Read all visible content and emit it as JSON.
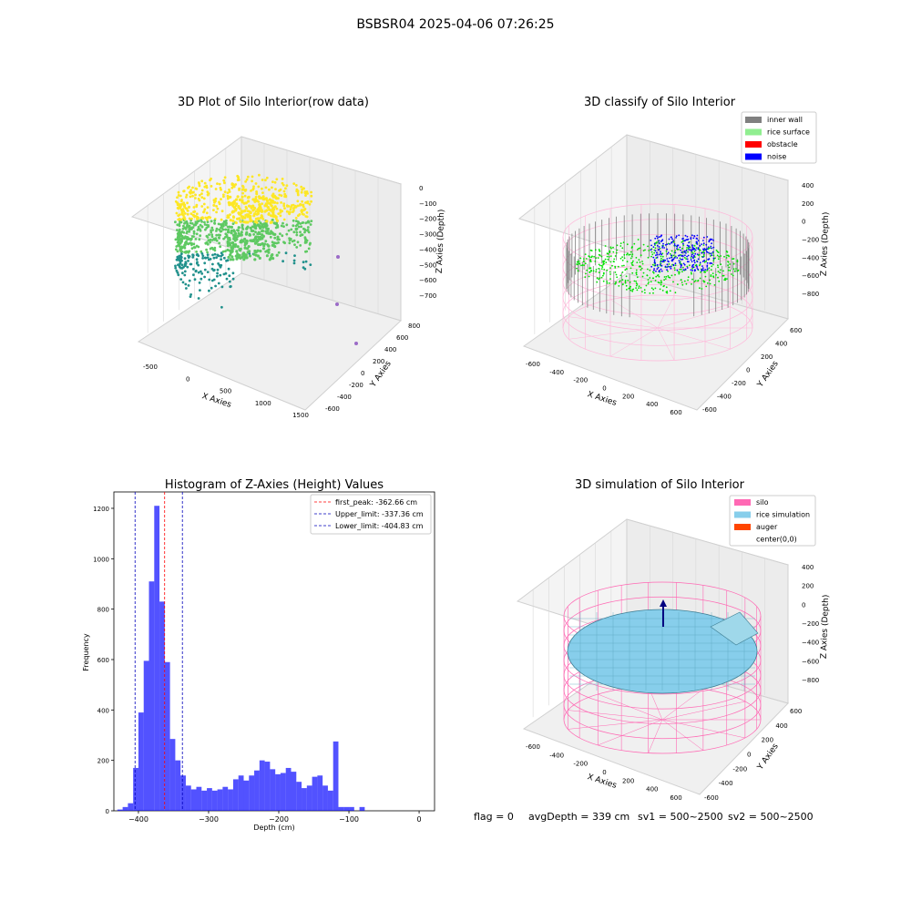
{
  "figure": {
    "suptitle": "BSBSR04 2025-04-06 07:26:25",
    "footer": {
      "flag": "flag = 0",
      "avg_depth": "avgDepth = 339 cm",
      "sv1": "sv1 = 500~2500",
      "sv2": "sv2 = 500~2500"
    }
  },
  "chart_data": [
    {
      "id": "raw",
      "type": "scatter",
      "title": "3D Plot of Silo Interior(row data)",
      "xlabel": "X Axies",
      "ylabel": "Y Axies",
      "zlabel": "Z Axies (Depth)",
      "x_ticks": [
        "-500",
        "0",
        "500",
        "1000",
        "1500"
      ],
      "y_ticks": [
        "-600",
        "-400",
        "-200",
        "0",
        "200",
        "400",
        "600",
        "800"
      ],
      "z_ticks": [
        "0",
        "−100",
        "−200",
        "−300",
        "−400",
        "−500",
        "−600",
        "−700"
      ],
      "colormap": [
        "#440154",
        "#21918c",
        "#5ec962",
        "#fde725"
      ],
      "outliers": [
        {
          "x": 1500,
          "y": 0,
          "z": -700
        },
        {
          "x": 1300,
          "y": -300,
          "z": -650
        },
        {
          "x": 1100,
          "y": -500,
          "z": -450
        }
      ]
    },
    {
      "id": "classify",
      "type": "scatter",
      "title": "3D classify of Silo Interior",
      "xlabel": "X Axies",
      "ylabel": "Y Axies",
      "zlabel": "Z Axies (Depth)",
      "x_ticks": [
        "-600",
        "-400",
        "-200",
        "0",
        "200",
        "400",
        "600"
      ],
      "y_ticks": [
        "-600",
        "-400",
        "-200",
        "0",
        "200",
        "400",
        "600"
      ],
      "z_ticks": [
        "400",
        "200",
        "0",
        "−200",
        "−400",
        "−600",
        "−800"
      ],
      "legend": [
        {
          "label": "inner wall",
          "color": "#808080"
        },
        {
          "label": "rice surface",
          "color": "#90ee90"
        },
        {
          "label": "obstacle",
          "color": "#ff0000"
        },
        {
          "label": "noise",
          "color": "#0000ff"
        }
      ]
    },
    {
      "id": "hist",
      "type": "bar",
      "title": "Histogram of Z-Axies (Height) Values",
      "xlabel": "Depth (cm)",
      "ylabel": "Frequency",
      "xlim": [
        -435,
        22
      ],
      "ylim": [
        0,
        1265
      ],
      "x_ticks": [
        -400,
        -300,
        -200,
        -100,
        0
      ],
      "x_tick_labels": [
        "−400",
        "−300",
        "−200",
        "−100",
        "0"
      ],
      "y_ticks": [
        0,
        200,
        400,
        600,
        800,
        1000,
        1200
      ],
      "bin_start": -430,
      "bin_width": 7.5,
      "bar_color": "#0000ff",
      "values": [
        5,
        15,
        30,
        170,
        390,
        595,
        910,
        1210,
        830,
        590,
        285,
        200,
        140,
        100,
        85,
        95,
        80,
        90,
        80,
        85,
        95,
        85,
        125,
        140,
        120,
        140,
        160,
        200,
        195,
        165,
        145,
        150,
        170,
        155,
        115,
        90,
        100,
        135,
        140,
        100,
        80,
        275,
        15,
        15,
        15,
        0,
        15
      ],
      "lines": [
        {
          "label": "first_peak: -362.66 cm",
          "x": -362.66,
          "color": "#ff0000"
        },
        {
          "label": "Upper_limit: -337.36 cm",
          "x": -337.36,
          "color": "#0000bb"
        },
        {
          "label": "Lower_limit: -404.83 cm",
          "x": -404.83,
          "color": "#0000bb"
        }
      ]
    },
    {
      "id": "sim",
      "type": "area",
      "title": "3D simulation of Silo Interior",
      "xlabel": "X Axies",
      "ylabel": "Y Axies",
      "zlabel": "Z Axies (Depth)",
      "x_ticks": [
        "-600",
        "-400",
        "-200",
        "0",
        "200",
        "400",
        "600"
      ],
      "y_ticks": [
        "-600",
        "-400",
        "-200",
        "0",
        "200",
        "400",
        "600"
      ],
      "z_ticks": [
        "400",
        "200",
        "0",
        "−200",
        "−400",
        "−600",
        "−800"
      ],
      "legend": [
        {
          "label": "silo",
          "color": "#ff69b4"
        },
        {
          "label": "rice simulation",
          "color": "#87ceeb"
        },
        {
          "label": "auger",
          "color": "#ff4500"
        },
        {
          "label": "center(0,0)",
          "color": ""
        }
      ]
    }
  ]
}
